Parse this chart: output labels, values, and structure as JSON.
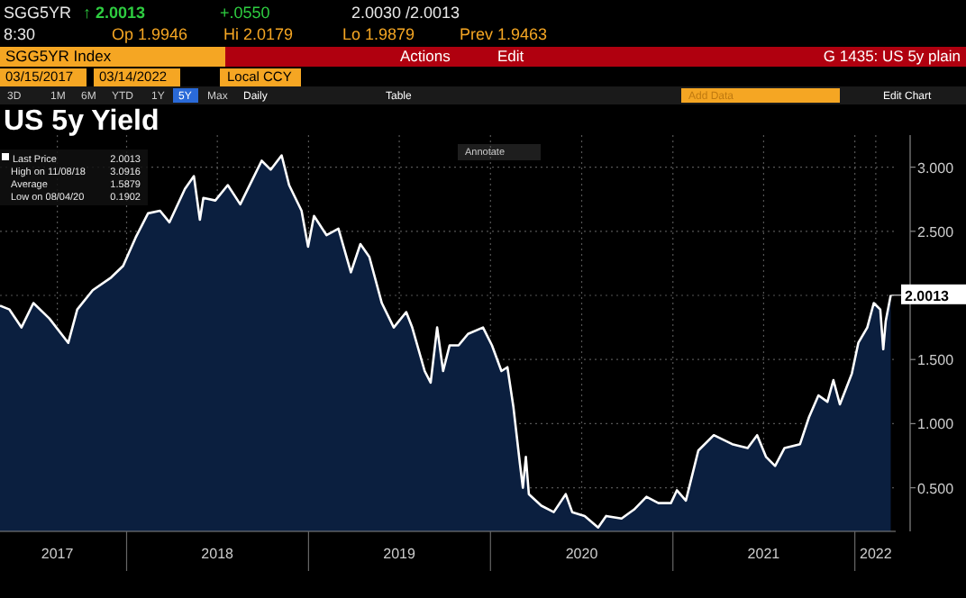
{
  "chart_data": {
    "type": "area",
    "title": "US 5y Yield",
    "x": [
      "2017-04-22",
      "2017-05-11",
      "2017-06-04",
      "2017-06-28",
      "2017-07-30",
      "2017-09-06",
      "2017-09-24",
      "2017-10-25",
      "2017-12-01",
      "2017-12-25",
      "2018-01-19",
      "2018-02-13",
      "2018-03-09",
      "2018-03-28",
      "2018-04-28",
      "2018-05-16",
      "2018-05-28",
      "2018-06-04",
      "2018-06-28",
      "2018-07-23",
      "2018-08-17",
      "2018-09-10",
      "2018-09-29",
      "2018-10-17",
      "2018-11-08",
      "2018-11-23",
      "2018-12-18",
      "2018-12-31",
      "2019-01-12",
      "2019-02-06",
      "2019-03-02",
      "2019-03-27",
      "2019-04-15",
      "2019-05-03",
      "2019-05-28",
      "2019-06-21",
      "2019-07-16",
      "2019-07-28",
      "2019-08-22",
      "2019-09-03",
      "2019-09-16",
      "2019-09-28",
      "2019-10-11",
      "2019-10-29",
      "2019-11-17",
      "2019-12-17",
      "2020-01-04",
      "2020-01-23",
      "2020-02-04",
      "2020-02-16",
      "2020-02-29",
      "2020-03-06",
      "2020-03-12",
      "2020-03-18",
      "2020-04-12",
      "2020-05-07",
      "2020-05-31",
      "2020-06-13",
      "2020-07-08",
      "2020-08-04",
      "2020-08-20",
      "2020-09-20",
      "2020-10-15",
      "2020-11-09",
      "2020-12-03",
      "2020-12-28",
      "2021-01-09",
      "2021-01-27",
      "2021-02-21",
      "2021-03-24",
      "2021-04-30",
      "2021-05-31",
      "2021-06-19",
      "2021-07-07",
      "2021-07-25",
      "2021-08-13",
      "2021-09-13",
      "2021-10-01",
      "2021-10-20",
      "2021-11-07",
      "2021-11-19",
      "2021-12-02",
      "2021-12-14",
      "2021-12-26",
      "2022-01-08",
      "2022-01-26",
      "2022-02-08",
      "2022-02-21",
      "2022-02-27",
      "2022-03-04",
      "2022-03-14"
    ],
    "series": [
      {
        "name": "Last Price",
        "color": "#ffffff",
        "values": [
          1.92,
          1.89,
          1.75,
          1.94,
          1.82,
          1.63,
          1.89,
          2.04,
          2.14,
          2.23,
          2.45,
          2.64,
          2.66,
          2.57,
          2.83,
          2.93,
          2.59,
          2.76,
          2.74,
          2.86,
          2.71,
          2.9,
          3.05,
          2.98,
          3.0916,
          2.86,
          2.66,
          2.38,
          2.62,
          2.47,
          2.52,
          2.18,
          2.4,
          2.3,
          1.94,
          1.75,
          1.87,
          1.75,
          1.41,
          1.32,
          1.75,
          1.41,
          1.61,
          1.61,
          1.7,
          1.75,
          1.61,
          1.41,
          1.44,
          1.13,
          0.69,
          0.5,
          0.74,
          0.45,
          0.36,
          0.31,
          0.45,
          0.31,
          0.28,
          0.1902,
          0.28,
          0.26,
          0.33,
          0.43,
          0.38,
          0.38,
          0.48,
          0.4,
          0.79,
          0.91,
          0.84,
          0.81,
          0.91,
          0.74,
          0.67,
          0.81,
          0.84,
          1.05,
          1.22,
          1.17,
          1.34,
          1.15,
          1.27,
          1.39,
          1.63,
          1.75,
          1.94,
          1.89,
          1.58,
          1.8,
          2.0013
        ]
      }
    ],
    "xlim": [
      "2017-04-22",
      "2022-03-24"
    ],
    "xticks": [
      {
        "value": "2017-08-15",
        "label": "2017"
      },
      {
        "value": "2018-01-01",
        "label": null
      },
      {
        "value": "2018-07-02",
        "label": "2018"
      },
      {
        "value": "2019-01-01",
        "label": null
      },
      {
        "value": "2019-07-02",
        "label": "2019"
      },
      {
        "value": "2020-01-01",
        "label": null
      },
      {
        "value": "2020-07-02",
        "label": "2020"
      },
      {
        "value": "2021-01-01",
        "label": null
      },
      {
        "value": "2021-07-02",
        "label": "2021"
      },
      {
        "value": "2022-01-01",
        "label": null
      },
      {
        "value": "2022-02-12",
        "label": "2022"
      }
    ],
    "ylim": [
      0.16,
      3.25
    ],
    "yticks": [
      {
        "value": 0.5,
        "label": "0.500"
      },
      {
        "value": 1,
        "label": "1.000"
      },
      {
        "value": 1.5,
        "label": "1.500"
      },
      {
        "value": 2,
        "label": null
      },
      {
        "value": 2.5,
        "label": "2.500"
      },
      {
        "value": 3,
        "label": "3.000"
      }
    ],
    "grid": true,
    "legend": "top left",
    "annotations": [
      "SGG5YR",
      "↑ 2.0013",
      "+.0550",
      "2.0030 /2.0013",
      "8:30",
      "Op 1.9946",
      "Hi 2.0179",
      "Lo 1.9879",
      "Prev 1.9463",
      "SGG5YR Index",
      "Actions",
      "Edit",
      "G 1435: US 5y plain",
      "03/15/2017",
      "03/14/2022",
      "Local CCY",
      "3D",
      "1M",
      "6M",
      "YTD",
      "1Y",
      "5Y",
      "Max",
      "Daily",
      "Table",
      "Add Data",
      "Edit Chart",
      "Annotate",
      "2.0013",
      "High on 11/08/18",
      "3.0916",
      "Average",
      "1.5879",
      "Low on 08/04/20",
      "0.1902",
      {
        "text": "2.0013",
        "x": "2022-03-14",
        "y": 2.0013
      }
    ]
  }
}
